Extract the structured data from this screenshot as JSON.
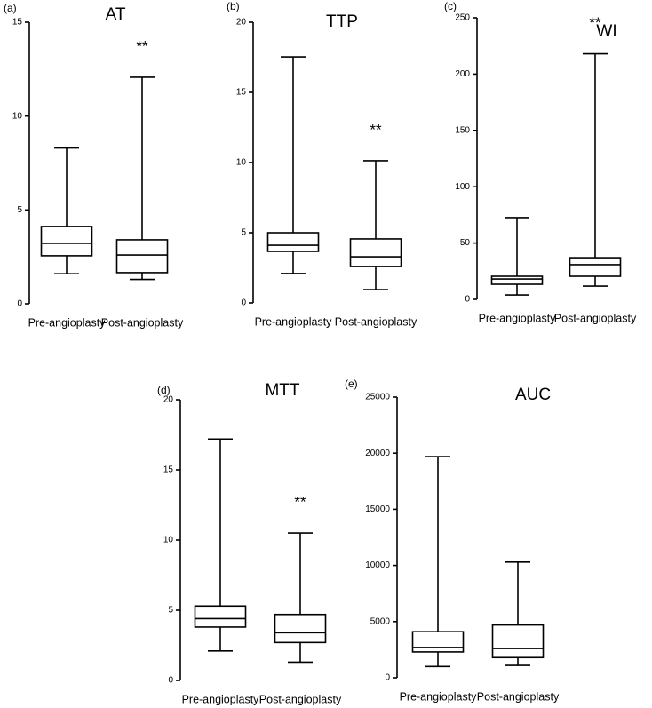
{
  "chart_data": [
    {
      "type": "box",
      "panel_label": "(a)",
      "title": "AT",
      "categories": [
        "Pre-angioplasty",
        "Post-angioplasty"
      ],
      "boxes": [
        {
          "min": 1.6,
          "q1": 2.56,
          "median": 3.22,
          "q3": 4.12,
          "max": 8.3
        },
        {
          "min": 1.3,
          "q1": 1.66,
          "median": 2.6,
          "q3": 3.41,
          "max": 12.07
        }
      ],
      "ylim": [
        0,
        15
      ],
      "yticks": [
        0,
        5,
        10,
        15
      ],
      "color": "#000000",
      "annotation": "**"
    },
    {
      "type": "box",
      "panel_label": "(b)",
      "title": "TTP",
      "categories": [
        "Pre-angioplasty",
        "Post-angioplasty"
      ],
      "boxes": [
        {
          "min": 2.09,
          "q1": 3.67,
          "median": 4.11,
          "q3": 5.0,
          "max": 17.53
        },
        {
          "min": 0.95,
          "q1": 2.59,
          "median": 3.29,
          "q3": 4.56,
          "max": 10.13
        }
      ],
      "ylim": [
        0,
        20
      ],
      "yticks": [
        0,
        5,
        10,
        15,
        20
      ],
      "color": "#000000",
      "annotation": "**"
    },
    {
      "type": "box",
      "panel_label": "(c)",
      "title": "WI",
      "categories": [
        "Pre-angioplasty",
        "Post-angioplasty"
      ],
      "boxes": [
        {
          "min": 3.9,
          "q1": 13.4,
          "median": 18.1,
          "q3": 20.5,
          "max": 72.6
        },
        {
          "min": 11.8,
          "q1": 20.5,
          "median": 30.8,
          "q3": 37,
          "max": 218
        }
      ],
      "ylim": [
        0,
        250
      ],
      "yticks": [
        0,
        50,
        100,
        150,
        200,
        250
      ],
      "color": "#000000",
      "annotation": "**"
    },
    {
      "type": "box",
      "panel_label": "(d)",
      "title": "MTT",
      "categories": [
        "Pre-angioplasty",
        "Post-angioplasty"
      ],
      "boxes": [
        {
          "min": 2.1,
          "q1": 3.8,
          "median": 4.4,
          "q3": 5.3,
          "max": 17.2
        },
        {
          "min": 1.3,
          "q1": 2.7,
          "median": 3.4,
          "q3": 4.7,
          "max": 10.5
        }
      ],
      "ylim": [
        0,
        20
      ],
      "yticks": [
        0,
        5,
        10,
        15,
        20
      ],
      "color": "#000000",
      "annotation": "**"
    },
    {
      "type": "box",
      "panel_label": "(e)",
      "title": "AUC",
      "categories": [
        "Pre-angioplasty",
        "Post-angioplasty"
      ],
      "boxes": [
        {
          "min": 1000,
          "q1": 2300,
          "median": 2700,
          "q3": 4100,
          "max": 19700
        },
        {
          "min": 1100,
          "q1": 1800,
          "median": 2600,
          "q3": 4700,
          "max": 10300
        }
      ],
      "ylim": [
        0,
        25000
      ],
      "yticks": [
        0,
        5000,
        10000,
        15000,
        20000,
        25000
      ],
      "color": "#000000"
    }
  ]
}
